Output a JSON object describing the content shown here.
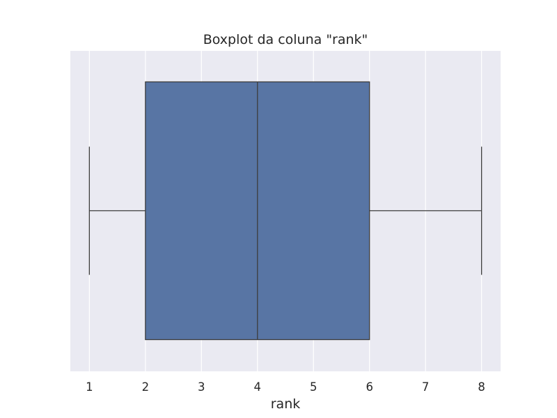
{
  "chart_data": {
    "type": "boxplot",
    "title": "Boxplot da coluna \"rank\"",
    "xlabel": "rank",
    "ylabel": "",
    "orientation": "horizontal",
    "xlim": [
      0.66,
      8.34
    ],
    "xticks": [
      1,
      2,
      3,
      4,
      5,
      6,
      7,
      8
    ],
    "xtick_labels": [
      "1",
      "2",
      "3",
      "4",
      "5",
      "6",
      "7",
      "8"
    ],
    "grid": true,
    "legend": "none",
    "box": {
      "whisker_low": 1,
      "q1": 2,
      "median": 4,
      "q3": 6,
      "whisker_high": 8
    },
    "colors": {
      "box_fill": "#5875a4",
      "line": "#3d3d3d",
      "axes_bg": "#eaeaf2",
      "grid": "#ffffff"
    }
  }
}
